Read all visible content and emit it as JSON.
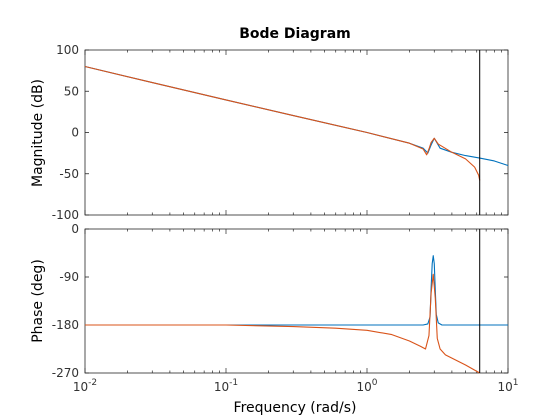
{
  "chart_data": {
    "type": "line",
    "title": "Bode Diagram",
    "xlabel": "Frequency  (rad/s)",
    "xscale": "log",
    "xlim": [
      0.01,
      10
    ],
    "x_ticks": [
      {
        "base": "10",
        "exp": "-2",
        "value": 0.01
      },
      {
        "base": "10",
        "exp": "-1",
        "value": 0.1
      },
      {
        "base": "10",
        "exp": "0",
        "value": 1
      },
      {
        "base": "10",
        "exp": "1",
        "value": 10
      }
    ],
    "grid": false,
    "vertical_marker_x": 6.3,
    "panels": [
      {
        "ylabel": "Magnitude (dB)",
        "ylim": [
          -100,
          100
        ],
        "y_ticks": [
          "100",
          "50",
          "0",
          "-50",
          "-100"
        ],
        "series": [
          {
            "color": "#0072bd",
            "x": [
              0.01,
              0.03,
              0.1,
              0.3,
              1,
              2,
              2.5,
              2.7,
              2.85,
              3.0,
              3.3,
              4,
              5,
              6.3,
              8,
              10
            ],
            "y": [
              80,
              60.5,
              39.5,
              20.5,
              0,
              -13,
              -19,
              -25,
              -15,
              -7,
              -19,
              -24,
              -28,
              -31,
              -34.5,
              -40
            ]
          },
          {
            "color": "#d95319",
            "x": [
              0.01,
              0.03,
              0.1,
              0.3,
              1,
              2,
              2.5,
              2.65,
              2.75,
              2.85,
              3.0,
              3.2,
              4,
              5,
              5.8,
              6.2,
              6.3
            ],
            "y": [
              80,
              60.5,
              39.5,
              20.5,
              0,
              -13,
              -20,
              -27,
              -20,
              -12,
              -7,
              -14,
              -24,
              -32,
              -42,
              -52,
              -58
            ]
          }
        ]
      },
      {
        "ylabel": "Phase (deg)",
        "ylim": [
          -270,
          0
        ],
        "y_ticks": [
          "0",
          "-90",
          "-180",
          "-270"
        ],
        "series": [
          {
            "color": "#0072bd",
            "x": [
              0.01,
              1,
              2,
              2.5,
              2.7,
              2.8,
              2.85,
              2.9,
              2.95,
              3.0,
              3.05,
              3.1,
              3.2,
              3.4,
              4,
              10
            ],
            "y": [
              -180,
              -180,
              -180,
              -180,
              -178,
              -165,
              -110,
              -65,
              -50,
              -65,
              -115,
              -160,
              -176,
              -180,
              -180,
              -180
            ]
          },
          {
            "color": "#d95319",
            "x": [
              0.01,
              0.1,
              0.3,
              0.6,
              1,
              1.5,
              2,
              2.4,
              2.6,
              2.75,
              2.85,
              2.95,
              3.05,
              3.15,
              3.3,
              3.6,
              4,
              5,
              6.3
            ],
            "y": [
              -180,
              -180,
              -183,
              -186,
              -190,
              -198,
              -210,
              -220,
              -225,
              -200,
              -120,
              -85,
              -130,
              -205,
              -225,
              -236,
              -242,
              -255,
              -270
            ]
          }
        ]
      }
    ]
  }
}
